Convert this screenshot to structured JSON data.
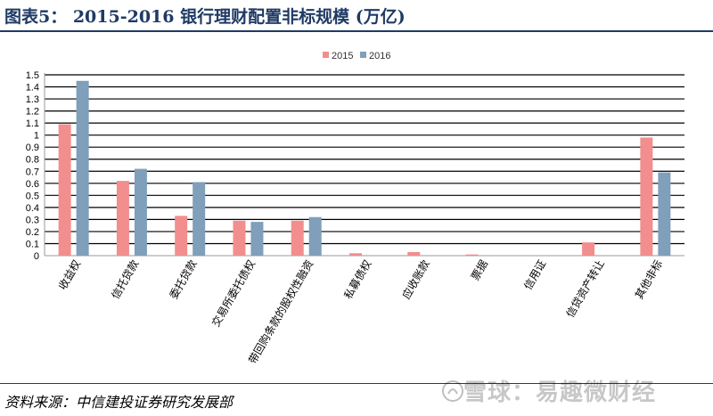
{
  "header": {
    "title": "图表5： 2015-2016 银行理财配置非标规模 (万亿)"
  },
  "footer": {
    "source": "资料来源：中信建投证券研究发展部"
  },
  "watermark": {
    "text": "雪球：易趣微财经",
    "icon": "snowball-logo-icon"
  },
  "chart_data": {
    "type": "bar",
    "title": "",
    "xlabel": "",
    "ylabel": "",
    "ylim": [
      0,
      1.5
    ],
    "yticks": [
      "0",
      "0.1",
      "0.2",
      "0.3",
      "0.4",
      "0.5",
      "0.6",
      "0.7",
      "0.8",
      "0.9",
      "1",
      "1.1",
      "1.2",
      "1.3",
      "1.4",
      "1.5"
    ],
    "grid": true,
    "legend_position": "top-center",
    "categories": [
      "收益权",
      "信托贷款",
      "委托贷款",
      "交易所委托债权",
      "带回购条款的股权性融资",
      "私募债权",
      "应收账款",
      "票据",
      "信用证",
      "信贷资产转让",
      "其他非标"
    ],
    "series": [
      {
        "name": "2015",
        "color": "#f28e8e",
        "values": [
          1.09,
          0.62,
          0.33,
          0.29,
          0.29,
          0.02,
          0.03,
          0.01,
          0.0,
          0.11,
          0.98
        ]
      },
      {
        "name": "2016",
        "color": "#7f9fba",
        "values": [
          1.45,
          0.72,
          0.61,
          0.28,
          0.32,
          0.0,
          0.0,
          0.0,
          0.0,
          0.0,
          0.69
        ]
      }
    ]
  }
}
